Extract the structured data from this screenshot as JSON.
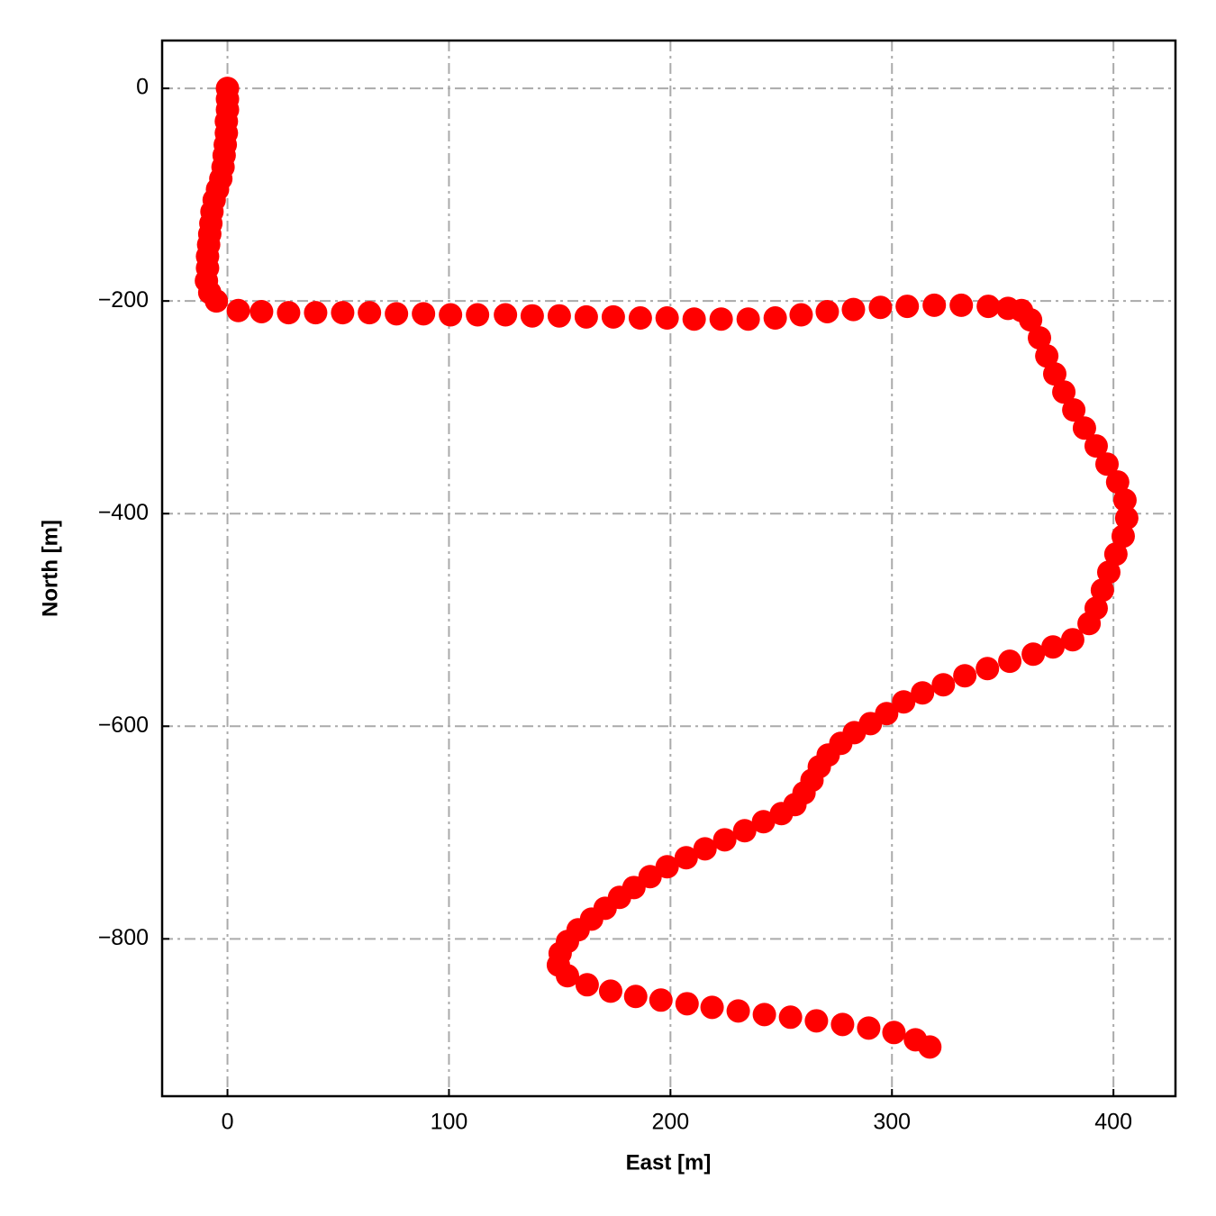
{
  "chart_data": {
    "type": "scatter",
    "xlabel": "East [m]",
    "ylabel": "North [m]",
    "color": "#ff0000",
    "grid": true,
    "xlim": [
      -29.5,
      428
    ],
    "ylim": [
      -948,
      45
    ],
    "xticks": [
      0,
      100,
      200,
      300,
      400
    ],
    "yticks": [
      0,
      {
        "value": -200,
        "label": "−200"
      },
      {
        "value": -400,
        "label": "−400"
      },
      {
        "value": -600,
        "label": "−600"
      },
      {
        "value": -800,
        "label": "−800"
      }
    ],
    "x": [
      0,
      0,
      0,
      -0.5,
      -0.5,
      -1,
      -1.5,
      -2,
      -3,
      -4.5,
      -6,
      -7,
      -7.5,
      -8,
      -8.5,
      -9,
      -9,
      -9.5,
      -8,
      -5,
      4.9,
      15.4,
      27.6,
      39.8,
      52,
      64.1,
      76.3,
      88.5,
      100.7,
      112.9,
      125.5,
      137.6,
      149.8,
      162,
      174.2,
      186.4,
      198.5,
      210.7,
      222.9,
      235.1,
      247.3,
      259,
      270.8,
      282.6,
      294.8,
      306.9,
      319.1,
      331.3,
      343.5,
      352.4,
      358.5,
      362.6,
      366.6,
      369.9,
      373.5,
      377.6,
      382.1,
      386.9,
      392.2,
      397.1,
      401.9,
      405.2,
      406,
      404.4,
      401.1,
      397.9,
      395,
      392.2,
      389,
      381.6,
      372.7,
      363.8,
      353.2,
      343.1,
      332.9,
      323.2,
      313.8,
      305.3,
      297.6,
      290.3,
      283,
      276.9,
      271.2,
      267.2,
      263.9,
      260.3,
      256.2,
      250.1,
      242,
      233.5,
      224.5,
      215.6,
      207.1,
      198.5,
      190.8,
      183.5,
      177,
      170.5,
      164.4,
      158.3,
      153.5,
      150.2,
      149.4,
      153.5,
      162.4,
      173,
      184.3,
      195.7,
      207.5,
      218.8,
      230.6,
      242.4,
      254.2,
      265.9,
      277.7,
      289.5,
      300.9,
      310.6,
      317.1
    ],
    "y": [
      0,
      -10,
      -20,
      -31,
      -42,
      -53,
      -63,
      -74,
      -85,
      -95,
      -105,
      -116,
      -127,
      -137,
      -147,
      -158,
      -169,
      -181,
      -192,
      -200,
      -209,
      -210,
      -211,
      -211,
      -211,
      -211,
      -212,
      -212,
      -213,
      -213,
      -213,
      -214,
      -214,
      -215,
      -215,
      -216,
      -216,
      -217,
      -217,
      -217,
      -216,
      -213,
      -210,
      -208,
      -206,
      -205,
      -204,
      -204,
      -205,
      -207,
      -209,
      -217.8,
      -234.7,
      -251.7,
      -268.6,
      -285.6,
      -302.5,
      -319.5,
      -336.4,
      -353.4,
      -370.3,
      -387.3,
      -404.2,
      -421.2,
      -438.1,
      -455.1,
      -472,
      -489,
      -503.4,
      -518.6,
      -525.4,
      -532.2,
      -538.9,
      -545.8,
      -552.5,
      -561,
      -568.6,
      -577.1,
      -588.1,
      -597.5,
      -606,
      -616.1,
      -627.1,
      -638.1,
      -650.8,
      -662.7,
      -673.7,
      -682.2,
      -689.8,
      -698.3,
      -706.8,
      -715.3,
      -723.7,
      -732.2,
      -741.5,
      -751.7,
      -761,
      -771.2,
      -781.4,
      -791.5,
      -802.5,
      -813.6,
      -824.6,
      -834.7,
      -843.2,
      -849.2,
      -854.2,
      -857.6,
      -861,
      -864.4,
      -867.8,
      -871.2,
      -873.7,
      -877.1,
      -880.5,
      -883.9,
      -888.1,
      -894.9,
      -901.7
    ]
  }
}
